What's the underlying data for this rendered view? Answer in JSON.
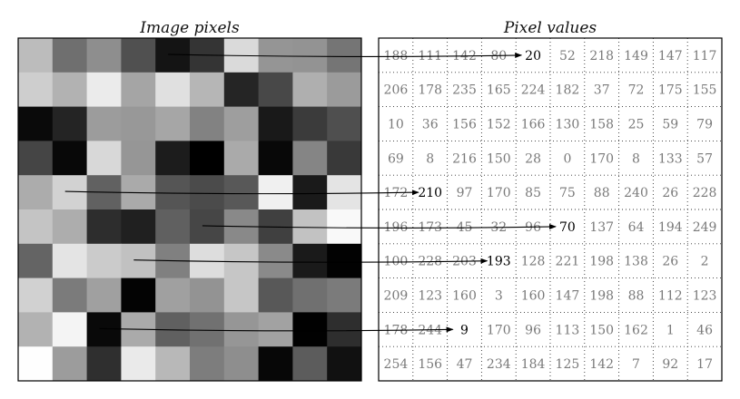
{
  "left_title": "Image pixels",
  "right_title": "Pixel values",
  "pixel_values": [
    [
      188,
      111,
      142,
      80,
      20,
      52,
      218,
      149,
      147,
      117
    ],
    [
      206,
      178,
      235,
      165,
      224,
      182,
      37,
      72,
      175,
      155
    ],
    [
      10,
      36,
      156,
      152,
      166,
      130,
      158,
      25,
      59,
      79
    ],
    [
      69,
      8,
      216,
      150,
      28,
      0,
      170,
      8,
      133,
      57
    ],
    [
      172,
      210,
      97,
      170,
      85,
      75,
      88,
      240,
      26,
      228
    ],
    [
      196,
      173,
      45,
      32,
      96,
      70,
      137,
      64,
      194,
      249
    ],
    [
      100,
      228,
      203,
      193,
      128,
      221,
      198,
      138,
      26,
      2
    ],
    [
      209,
      123,
      160,
      3,
      160,
      147,
      198,
      88,
      112,
      123
    ],
    [
      178,
      244,
      9,
      170,
      96,
      113,
      150,
      162,
      1,
      46
    ],
    [
      254,
      156,
      47,
      234,
      184,
      125,
      142,
      7,
      92,
      17
    ]
  ],
  "highlighted_cells": [
    [
      0,
      4
    ],
    [
      4,
      1
    ],
    [
      5,
      5
    ],
    [
      6,
      3
    ],
    [
      8,
      2
    ]
  ],
  "colors": {
    "highlight_text": "#000000",
    "dim_text": "#7a7a7a",
    "border": "#000000",
    "grid_dots": "#333333"
  }
}
